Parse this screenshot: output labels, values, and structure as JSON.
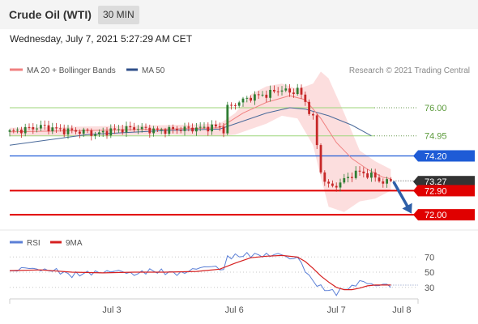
{
  "header": {
    "title": "Crude Oil (WTI)",
    "timeframe": "30 MIN",
    "datetime": "Wednesday, July 7, 2021 5:27:29 AM CET"
  },
  "legend": {
    "ma20_label": "MA 20 + Bollinger Bands",
    "ma50_label": "MA 50",
    "credit": "Research © 2021 Trading Central",
    "rsi_label": "RSI",
    "ma9_label": "9MA"
  },
  "colors": {
    "price_up": "#2e7d32",
    "price_down": "#c62828",
    "ma20": "#f08080",
    "ma50": "#4a6a9a",
    "bollinger_fill": "#fbd3d3",
    "support": "#e00000",
    "pivot": "#1e5bd6",
    "resistance": "#9cd67a",
    "current": "#333333",
    "arrow": "#2e5fa8",
    "rsi": "#5b7fd6",
    "rsi_ma": "#d62020"
  },
  "chart_data": [
    {
      "type": "candlestick",
      "x_axis": "time (30 min bars)",
      "x_tick_labels": [
        "Jul 3",
        "Jul 6",
        "Jul 7",
        "Jul 8"
      ],
      "x_tick_positions": [
        25,
        55,
        80,
        96
      ],
      "n_bars": 106,
      "ylim": [
        71.55,
        77.0
      ],
      "right_labels": [
        {
          "value": 76.0,
          "label": "76.00",
          "kind": "resistance"
        },
        {
          "value": 74.95,
          "label": "74.95",
          "kind": "resistance"
        },
        {
          "value": 74.2,
          "label": "74.20",
          "kind": "pivot"
        },
        {
          "value": 73.27,
          "label": "73.27",
          "kind": "current"
        },
        {
          "value": 72.9,
          "label": "72.90",
          "kind": "support"
        },
        {
          "value": 72.0,
          "label": "72.00",
          "kind": "support"
        }
      ],
      "close_path": [
        [
          0,
          75.1
        ],
        [
          4,
          75.2
        ],
        [
          8,
          75.3
        ],
        [
          14,
          75.15
        ],
        [
          20,
          75.1
        ],
        [
          22,
          75.0
        ],
        [
          26,
          75.15
        ],
        [
          32,
          75.25
        ],
        [
          38,
          75.15
        ],
        [
          44,
          75.2
        ],
        [
          50,
          75.25
        ],
        [
          54,
          75.3
        ],
        [
          55,
          75.15
        ],
        [
          56,
          76.0
        ],
        [
          58,
          76.15
        ],
        [
          62,
          76.4
        ],
        [
          66,
          76.5
        ],
        [
          70,
          76.7
        ],
        [
          72,
          76.55
        ],
        [
          74,
          76.7
        ],
        [
          76,
          76.2
        ],
        [
          78,
          75.6
        ],
        [
          79,
          74.6
        ],
        [
          80,
          73.6
        ],
        [
          82,
          73.05
        ],
        [
          84,
          73.1
        ],
        [
          86,
          73.3
        ],
        [
          88,
          73.5
        ],
        [
          90,
          73.6
        ],
        [
          92,
          73.5
        ],
        [
          94,
          73.4
        ],
        [
          96,
          73.2
        ],
        [
          98,
          73.27
        ]
      ],
      "ma20_path": [
        [
          0,
          75.1
        ],
        [
          20,
          75.15
        ],
        [
          40,
          75.2
        ],
        [
          54,
          75.25
        ],
        [
          60,
          75.8
        ],
        [
          66,
          76.2
        ],
        [
          72,
          76.45
        ],
        [
          76,
          76.3
        ],
        [
          80,
          75.6
        ],
        [
          84,
          74.7
        ],
        [
          88,
          74.1
        ],
        [
          92,
          73.7
        ],
        [
          96,
          73.4
        ],
        [
          98,
          73.35
        ]
      ],
      "ma50_path": [
        [
          0,
          74.6
        ],
        [
          20,
          75.0
        ],
        [
          40,
          75.15
        ],
        [
          54,
          75.2
        ],
        [
          60,
          75.5
        ],
        [
          66,
          75.8
        ],
        [
          72,
          76.0
        ],
        [
          76,
          75.95
        ],
        [
          82,
          75.7
        ],
        [
          88,
          75.35
        ],
        [
          93,
          74.95
        ]
      ],
      "bollinger_upper": [
        [
          0,
          75.25
        ],
        [
          20,
          75.3
        ],
        [
          40,
          75.35
        ],
        [
          54,
          75.4
        ],
        [
          58,
          75.8
        ],
        [
          62,
          76.5
        ],
        [
          66,
          76.8
        ],
        [
          70,
          76.9
        ],
        [
          74,
          76.7
        ],
        [
          78,
          76.9
        ],
        [
          80,
          77.35
        ],
        [
          82,
          77.1
        ],
        [
          86,
          75.8
        ],
        [
          90,
          74.4
        ],
        [
          94,
          74.0
        ],
        [
          98,
          73.7
        ]
      ],
      "bollinger_lower": [
        [
          98,
          72.9
        ],
        [
          94,
          72.6
        ],
        [
          90,
          72.5
        ],
        [
          86,
          72.1
        ],
        [
          82,
          72.3
        ],
        [
          80,
          73.4
        ],
        [
          78,
          74.6
        ],
        [
          74,
          75.6
        ],
        [
          70,
          75.7
        ],
        [
          66,
          75.4
        ],
        [
          62,
          75.2
        ],
        [
          58,
          75.0
        ],
        [
          54,
          74.95
        ],
        [
          40,
          75.0
        ],
        [
          20,
          74.95
        ],
        [
          0,
          74.95
        ]
      ]
    },
    {
      "type": "line",
      "name": "RSI",
      "ylim": [
        18,
        82
      ],
      "y_tick_labels": [
        "70",
        "50",
        "30"
      ],
      "y_ticks": [
        70,
        50,
        30
      ],
      "series": [
        {
          "name": "RSI",
          "points": [
            [
              0,
              50
            ],
            [
              4,
              56
            ],
            [
              8,
              53
            ],
            [
              12,
              52
            ],
            [
              16,
              46
            ],
            [
              20,
              49
            ],
            [
              24,
              50
            ],
            [
              28,
              52
            ],
            [
              32,
              47
            ],
            [
              36,
              52
            ],
            [
              40,
              50
            ],
            [
              44,
              48
            ],
            [
              48,
              55
            ],
            [
              52,
              58
            ],
            [
              55,
              53
            ],
            [
              56,
              70
            ],
            [
              58,
              71
            ],
            [
              62,
              73
            ],
            [
              66,
              72
            ],
            [
              70,
              74
            ],
            [
              72,
              67
            ],
            [
              74,
              70
            ],
            [
              76,
              52
            ],
            [
              78,
              38
            ],
            [
              80,
              30
            ],
            [
              82,
              26
            ],
            [
              84,
              23
            ],
            [
              86,
              28
            ],
            [
              88,
              30
            ],
            [
              90,
              38
            ],
            [
              92,
              36
            ],
            [
              94,
              32
            ],
            [
              96,
              34
            ],
            [
              98,
              32
            ]
          ]
        },
        {
          "name": "9MA",
          "points": [
            [
              0,
              52
            ],
            [
              8,
              53
            ],
            [
              16,
              50
            ],
            [
              24,
              49
            ],
            [
              32,
              50
            ],
            [
              40,
              50
            ],
            [
              48,
              51
            ],
            [
              54,
              54
            ],
            [
              58,
              62
            ],
            [
              62,
              69
            ],
            [
              66,
              71
            ],
            [
              70,
              72
            ],
            [
              74,
              70
            ],
            [
              76,
              64
            ],
            [
              78,
              55
            ],
            [
              80,
              45
            ],
            [
              82,
              37
            ],
            [
              84,
              30
            ],
            [
              86,
              27
            ],
            [
              88,
              27
            ],
            [
              90,
              29
            ],
            [
              92,
              32
            ],
            [
              94,
              33
            ],
            [
              96,
              33
            ],
            [
              98,
              33
            ]
          ]
        }
      ]
    }
  ]
}
